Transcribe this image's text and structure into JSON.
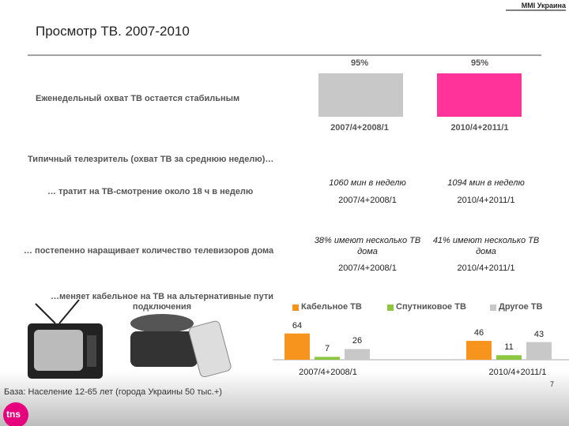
{
  "header": {
    "source": "MMI Украина",
    "title": "Просмотр ТВ. 2007-2010"
  },
  "chart_data": [
    {
      "type": "bar",
      "title": "Еженедельный охват ТВ остается стабильным",
      "categories": [
        "2007/4+2008/1",
        "2010/4+2011/1"
      ],
      "values": [
        95,
        95
      ],
      "value_labels": [
        "95%",
        "95%"
      ],
      "colors": [
        "#c8c8c8",
        "#ff3399"
      ],
      "ylim": [
        0,
        100
      ]
    },
    {
      "type": "grouped-bar",
      "title": "…меняет кабельное на ТВ на альтернативные пути подключения",
      "categories": [
        "2007/4+2008/1",
        "2010/4+2011/1"
      ],
      "series": [
        {
          "name": "Кабельное ТВ",
          "color": "#f7941d",
          "values": [
            64,
            46
          ]
        },
        {
          "name": "Спутниковое ТВ",
          "color": "#8dc63f",
          "values": [
            7,
            11
          ]
        },
        {
          "name": "Другое ТВ",
          "color": "#c8c8c8",
          "values": [
            26,
            43
          ]
        }
      ],
      "ylim": [
        0,
        100
      ],
      "legend": "top"
    }
  ],
  "typical": {
    "heading": "Типичный телезритель (охват ТВ за среднюю неделю)…",
    "rows": [
      {
        "label": "… тратит на ТВ-смотрение около 18 ч  в неделю",
        "cells": [
          {
            "text": "1060 мин в неделю",
            "period": "2007/4+2008/1"
          },
          {
            "text": "1094 мин в неделю",
            "period": "2010/4+2011/1"
          }
        ]
      },
      {
        "label": "… постепенно наращивает количество телевизоров дома",
        "cells": [
          {
            "text": "38% имеют несколько ТВ дома",
            "period": "2007/4+2008/1"
          },
          {
            "text": "41% имеют несколько ТВ дома",
            "period": "2010/4+2011/1"
          }
        ]
      }
    ]
  },
  "footer": {
    "base": "База: Население 12-65 лет (города Украины 50 тыс.+)",
    "page": "7",
    "logo": "tns"
  }
}
